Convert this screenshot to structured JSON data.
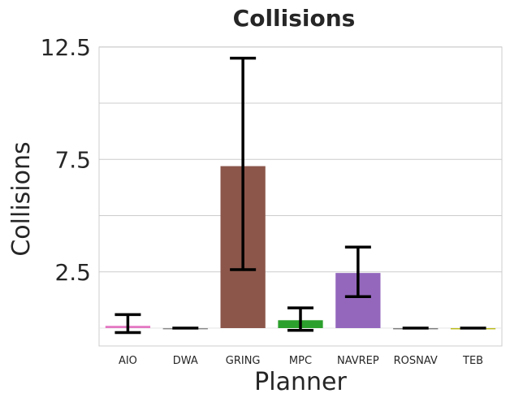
{
  "chart_data": {
    "type": "bar",
    "title": "Collisions",
    "xlabel": "Planner",
    "ylabel": "Collisions",
    "categories": [
      "AIO",
      "DWA",
      "GRING",
      "MPC",
      "NAVREP",
      "ROSNAV",
      "TEB"
    ],
    "values": [
      0.1,
      0.0,
      7.2,
      0.35,
      2.45,
      0.0,
      0.0
    ],
    "error_low": [
      -0.2,
      0.0,
      2.6,
      -0.1,
      1.4,
      0.0,
      0.0
    ],
    "error_high": [
      0.6,
      0.0,
      12.0,
      0.9,
      3.6,
      0.0,
      0.0
    ],
    "colors": [
      "#e377c2",
      "#8c8c8c",
      "#8c564b",
      "#2ca02c",
      "#9467bd",
      "#7f7f7f",
      "#bcbd22"
    ],
    "yticks": [
      2.5,
      7.5,
      12.5
    ],
    "ytick_labels": [
      "2.5",
      "7.5",
      "12.5"
    ],
    "gridlines": [
      2.5,
      5.0,
      7.5,
      10.0,
      12.5
    ],
    "ylim": [
      -0.4,
      12.5
    ],
    "grid": true
  }
}
